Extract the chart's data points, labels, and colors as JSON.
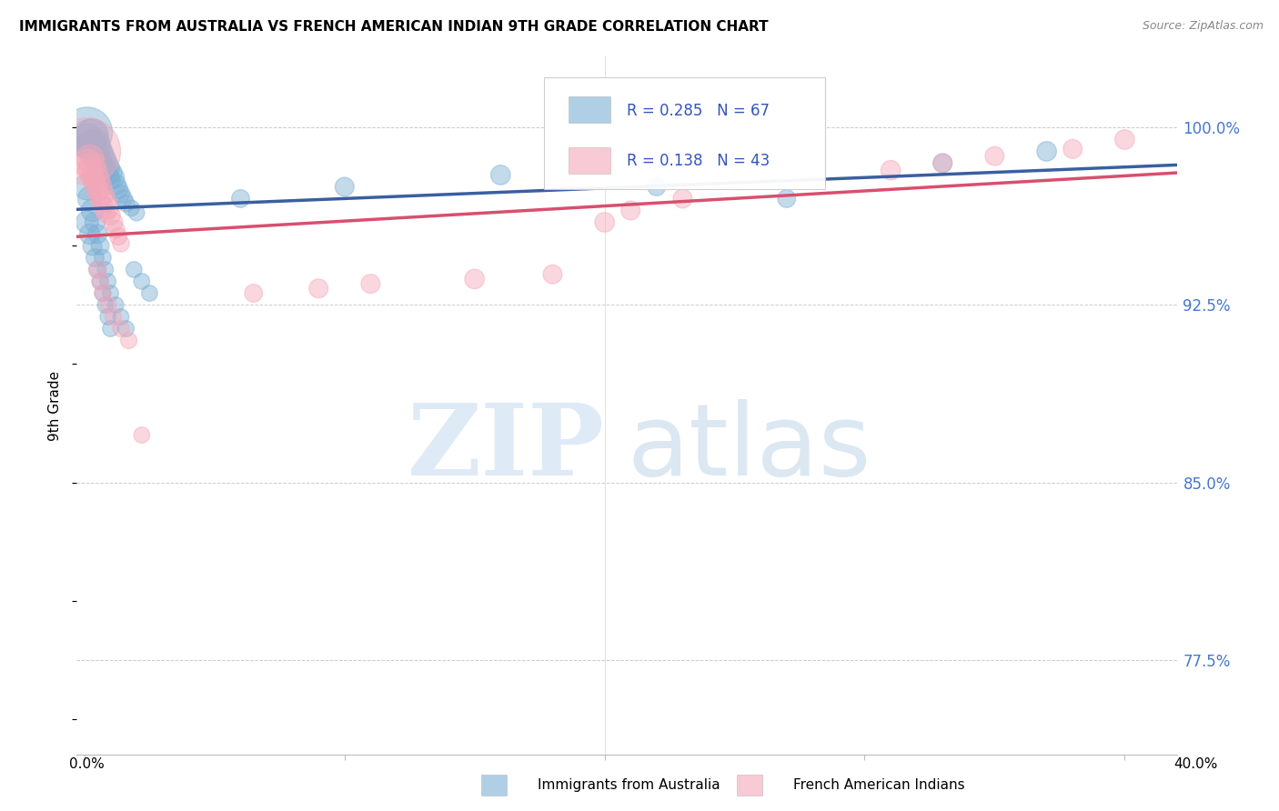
{
  "title": "IMMIGRANTS FROM AUSTRALIA VS FRENCH AMERICAN INDIAN 9TH GRADE CORRELATION CHART",
  "source_text": "Source: ZipAtlas.com",
  "ylabel": "9th Grade",
  "yticks": [
    0.775,
    0.85,
    0.925,
    1.0
  ],
  "ytick_labels": [
    "77.5%",
    "85.0%",
    "92.5%",
    "100.0%"
  ],
  "ymin": 0.735,
  "ymax": 1.03,
  "xmin": -0.003,
  "xmax": 0.42,
  "blue_R": 0.285,
  "blue_N": 67,
  "pink_R": 0.138,
  "pink_N": 43,
  "legend_label_blue": "Immigrants from Australia",
  "legend_label_pink": "French American Indians",
  "blue_color": "#7BAFD4",
  "pink_color": "#F4A7B9",
  "blue_line_color": "#3A5FA0",
  "pink_line_color": "#D94F6E",
  "blue_scatter_x": [
    0.001,
    0.001,
    0.001,
    0.002,
    0.002,
    0.002,
    0.003,
    0.003,
    0.003,
    0.003,
    0.004,
    0.004,
    0.004,
    0.005,
    0.005,
    0.005,
    0.006,
    0.006,
    0.007,
    0.007,
    0.008,
    0.008,
    0.009,
    0.009,
    0.01,
    0.01,
    0.011,
    0.012,
    0.013,
    0.014,
    0.015,
    0.016,
    0.018,
    0.02,
    0.001,
    0.002,
    0.003,
    0.004,
    0.005,
    0.006,
    0.007,
    0.008,
    0.009,
    0.01,
    0.012,
    0.014,
    0.016,
    0.019,
    0.022,
    0.025,
    0.001,
    0.002,
    0.003,
    0.004,
    0.005,
    0.006,
    0.007,
    0.008,
    0.009,
    0.01,
    0.06,
    0.1,
    0.16,
    0.22,
    0.27,
    0.33,
    0.37
  ],
  "blue_scatter_y": [
    0.998,
    0.995,
    0.992,
    0.996,
    0.993,
    0.99,
    0.997,
    0.994,
    0.991,
    0.988,
    0.993,
    0.99,
    0.987,
    0.991,
    0.988,
    0.985,
    0.989,
    0.986,
    0.987,
    0.984,
    0.985,
    0.982,
    0.983,
    0.98,
    0.981,
    0.978,
    0.979,
    0.976,
    0.974,
    0.972,
    0.97,
    0.968,
    0.966,
    0.964,
    0.975,
    0.97,
    0.965,
    0.96,
    0.955,
    0.95,
    0.945,
    0.94,
    0.935,
    0.93,
    0.925,
    0.92,
    0.915,
    0.94,
    0.935,
    0.93,
    0.96,
    0.955,
    0.95,
    0.945,
    0.94,
    0.935,
    0.93,
    0.925,
    0.92,
    0.915,
    0.97,
    0.975,
    0.98,
    0.975,
    0.97,
    0.985,
    0.99
  ],
  "blue_scatter_sizes": [
    200,
    80,
    50,
    100,
    60,
    40,
    80,
    50,
    40,
    35,
    70,
    50,
    40,
    60,
    45,
    35,
    55,
    40,
    50,
    38,
    45,
    35,
    42,
    32,
    40,
    30,
    38,
    32,
    28,
    25,
    24,
    22,
    20,
    20,
    55,
    45,
    38,
    32,
    28,
    25,
    22,
    20,
    20,
    20,
    20,
    20,
    20,
    20,
    20,
    20,
    40,
    32,
    28,
    25,
    22,
    20,
    20,
    20,
    20,
    20,
    25,
    28,
    30,
    25,
    25,
    28,
    30
  ],
  "pink_scatter_x": [
    0.001,
    0.001,
    0.002,
    0.002,
    0.003,
    0.003,
    0.004,
    0.004,
    0.005,
    0.005,
    0.006,
    0.006,
    0.007,
    0.007,
    0.008,
    0.008,
    0.009,
    0.01,
    0.011,
    0.012,
    0.013,
    0.014,
    0.005,
    0.006,
    0.007,
    0.009,
    0.011,
    0.014,
    0.017,
    0.022,
    0.065,
    0.09,
    0.11,
    0.15,
    0.18,
    0.2,
    0.21,
    0.23,
    0.31,
    0.33,
    0.35,
    0.38,
    0.4
  ],
  "pink_scatter_y": [
    0.99,
    0.985,
    0.987,
    0.982,
    0.984,
    0.979,
    0.981,
    0.976,
    0.978,
    0.973,
    0.975,
    0.97,
    0.972,
    0.967,
    0.969,
    0.964,
    0.966,
    0.963,
    0.96,
    0.957,
    0.954,
    0.951,
    0.94,
    0.935,
    0.93,
    0.925,
    0.92,
    0.915,
    0.91,
    0.87,
    0.93,
    0.932,
    0.934,
    0.936,
    0.938,
    0.96,
    0.965,
    0.97,
    0.982,
    0.985,
    0.988,
    0.991,
    0.995
  ],
  "pink_scatter_sizes": [
    350,
    60,
    60,
    45,
    55,
    40,
    50,
    38,
    45,
    35,
    42,
    32,
    40,
    30,
    38,
    28,
    35,
    30,
    28,
    25,
    23,
    22,
    25,
    23,
    22,
    22,
    21,
    21,
    21,
    20,
    25,
    28,
    28,
    30,
    28,
    30,
    28,
    28,
    30,
    28,
    28,
    28,
    30
  ]
}
